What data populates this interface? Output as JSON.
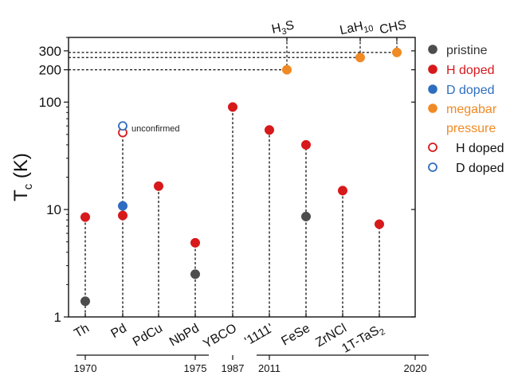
{
  "chart_data": {
    "type": "scatter",
    "ylabel_main": "T",
    "ylabel_sub": "c",
    "ylabel_unit": " (K)",
    "yscale": "log",
    "ylim": [
      1,
      400
    ],
    "y_ticks": [
      1,
      10,
      100,
      200,
      300
    ],
    "y_tick_labels": [
      "1",
      "10",
      "100",
      "200",
      "300"
    ],
    "categories": [
      {
        "main": "Th",
        "sub": ""
      },
      {
        "main": "Pd",
        "sub": ""
      },
      {
        "main": "PdCu",
        "sub": ""
      },
      {
        "main": "NbPd",
        "sub": ""
      },
      {
        "main": "YBCO",
        "sub": ""
      },
      {
        "main": "'1111'",
        "sub": ""
      },
      {
        "main": "FeSe",
        "sub": ""
      },
      {
        "main": "ZrNCl",
        "sub": ""
      },
      {
        "main": "1T-TaS",
        "sub": "2"
      }
    ],
    "top_categories": [
      {
        "main": "H",
        "sub": "3",
        "tail": "S"
      },
      {
        "main": "LaH",
        "sub": "10",
        "tail": ""
      },
      {
        "main": "CHS",
        "sub": "",
        "tail": ""
      }
    ],
    "year_labels": [
      "1970",
      "1975",
      "1987",
      "2011",
      "2020"
    ],
    "colors": {
      "pristine": "#4d4d4d",
      "h_doped": "#d7191c",
      "d_doped": "#2e6dbf",
      "megabar": "#f08a24"
    },
    "series": [
      {
        "name": "pristine",
        "color": "#4d4d4d",
        "filled": true,
        "points": [
          {
            "cat": 0,
            "y": 1.4
          },
          {
            "cat": 3,
            "y": 2.5
          },
          {
            "cat": 6,
            "y": 8.6
          }
        ]
      },
      {
        "name": "H doped",
        "color": "#d7191c",
        "filled": true,
        "points": [
          {
            "cat": 0,
            "y": 8.5
          },
          {
            "cat": 1,
            "y": 8.8
          },
          {
            "cat": 2,
            "y": 16.5
          },
          {
            "cat": 3,
            "y": 4.9
          },
          {
            "cat": 4,
            "y": 90
          },
          {
            "cat": 5,
            "y": 55
          },
          {
            "cat": 6,
            "y": 40
          },
          {
            "cat": 7,
            "y": 15
          },
          {
            "cat": 8,
            "y": 7.3
          }
        ]
      },
      {
        "name": "D doped",
        "color": "#2e6dbf",
        "filled": true,
        "points": [
          {
            "cat": 1,
            "y": 10.8
          }
        ]
      },
      {
        "name": "megabar pressure",
        "color": "#f08a24",
        "filled": true,
        "points": [
          {
            "top": 0,
            "y": 200
          },
          {
            "top": 1,
            "y": 260
          },
          {
            "top": 2,
            "y": 290
          }
        ]
      },
      {
        "name": "H doped (unconfirmed)",
        "color": "#d7191c",
        "filled": false,
        "points": [
          {
            "cat": 1,
            "y": 52
          }
        ]
      },
      {
        "name": "D doped (unconfirmed)",
        "color": "#2e6dbf",
        "filled": false,
        "points": [
          {
            "cat": 1,
            "y": 60
          }
        ]
      }
    ],
    "annotation": "unconfirmed",
    "legend": {
      "position": "right",
      "items": [
        {
          "label": "pristine",
          "color": "#4d4d4d",
          "filled": true,
          "text_color": "#333333"
        },
        {
          "label": "H doped",
          "color": "#d7191c",
          "filled": true,
          "text_color": "#d7191c"
        },
        {
          "label": "D doped",
          "color": "#2e6dbf",
          "filled": true,
          "text_color": "#2e6dbf"
        },
        {
          "label": "megabar pressure",
          "color": "#f08a24",
          "filled": true,
          "text_color": "#f08a24"
        },
        {
          "label": "H doped",
          "color": "#d7191c",
          "filled": false,
          "text_color": "#111111"
        },
        {
          "label": "D doped",
          "color": "#2e6dbf",
          "filled": false,
          "text_color": "#111111"
        }
      ]
    }
  }
}
